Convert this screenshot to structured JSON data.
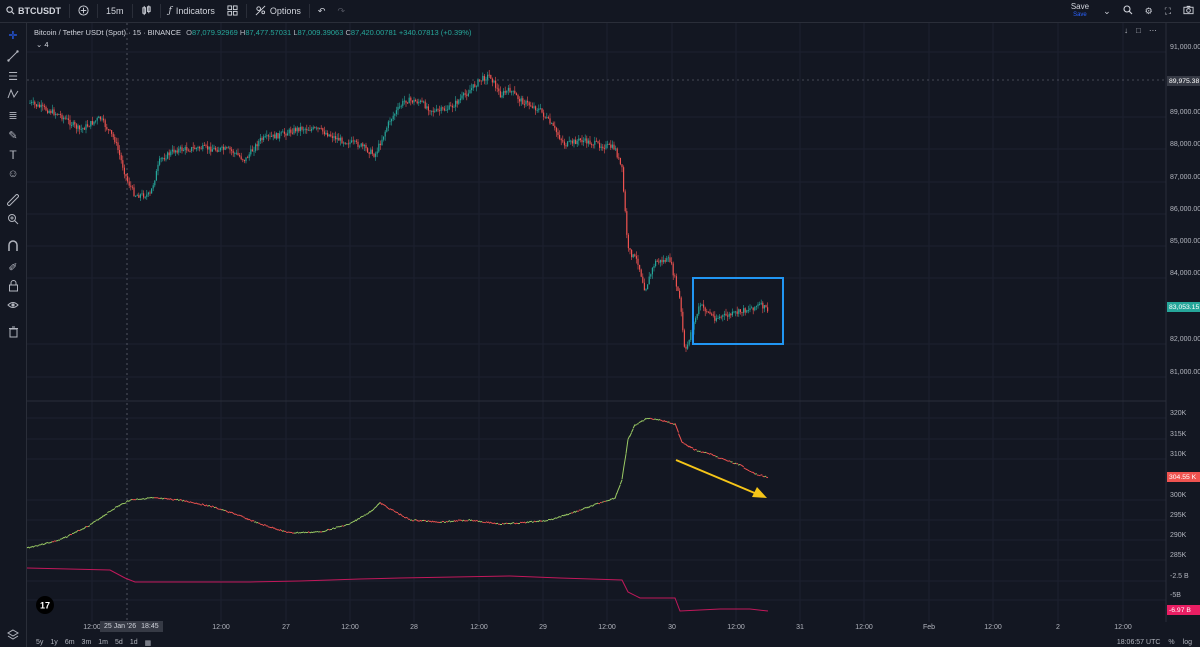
{
  "toolbar": {
    "symbol": "BTCUSDT",
    "interval": "15m",
    "indicators_label": "Indicators",
    "options_label": "Options",
    "save_label": "Save",
    "save_sub": "Save"
  },
  "legend": {
    "title": "Bitcoin / Tether USDt (Spot) · 15 · BINANCE",
    "o_label": "O",
    "o_value": "87,079.92969",
    "h_label": "H",
    "h_value": "87,477.57031",
    "l_label": "L",
    "l_value": "87,009.39063",
    "c_label": "C",
    "c_value": "87,420.00781",
    "change": "+340.07813 (+0.39%)",
    "collapse": "4"
  },
  "price_axis": {
    "labels": [
      "91,000.00",
      "89,000.00",
      "88,000.00",
      "87,000.00",
      "86,000.00",
      "85,000.00",
      "84,000.00",
      "82,000.00",
      "81,000.00"
    ],
    "crosshair_price": "89,975.38",
    "last_price": "83,053.15"
  },
  "indicator_axis": {
    "labels": [
      "320K",
      "315K",
      "310K",
      "300K",
      "295K",
      "290K",
      "285K",
      "-2.5 B",
      "-5B"
    ],
    "last_value": "304.55 K",
    "last_value2": "-6.97 B"
  },
  "time_axis": {
    "labels": [
      "12:00",
      "12:00",
      "27",
      "12:00",
      "28",
      "12:00",
      "29",
      "12:00",
      "30",
      "12:00",
      "31",
      "12:00",
      "Feb",
      "12:00",
      "2",
      "12:00"
    ],
    "crosshair_date": "25 Jan '26",
    "crosshair_time": "18:45"
  },
  "bottom": {
    "ranges": [
      "5y",
      "1y",
      "6m",
      "3m",
      "1m",
      "5d",
      "1d"
    ],
    "clock": "18:06:57 UTC",
    "percent": "%",
    "log": "log"
  },
  "colors": {
    "up": "#26a69a",
    "down": "#ef5350",
    "highlight_box": "#2196f3",
    "arrow": "#f5c518",
    "magenta_line": "#c2185b",
    "background": "#131722"
  }
}
